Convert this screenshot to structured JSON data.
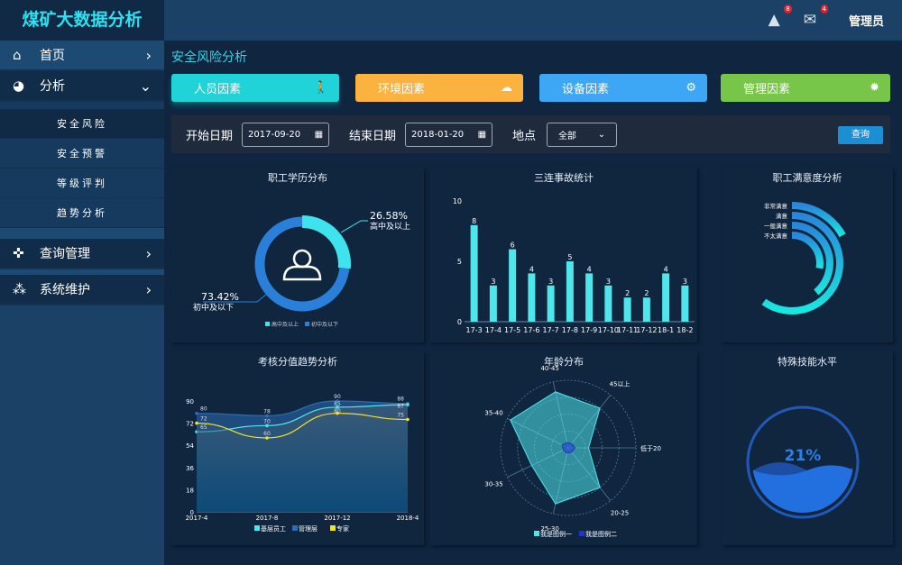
{
  "app_title": "煤矿大数据分析",
  "sidebar": {
    "items": [
      {
        "label": "首页",
        "icon": "home-icon"
      },
      {
        "label": "分析",
        "icon": "dashboard-icon",
        "expanded": true,
        "children": [
          "安全风险",
          "安全预警",
          "等级评判",
          "趋势分析"
        ]
      },
      {
        "label": "查询管理",
        "icon": "crosshair-icon"
      },
      {
        "label": "系统维护",
        "icon": "cubes-icon"
      }
    ]
  },
  "header": {
    "alerts_count": "8",
    "messages_count": "4",
    "user": "管理员"
  },
  "page_title": "安全风险分析",
  "cards": [
    {
      "label": "人员因素",
      "color": "#1fd3d8",
      "icon": "person-icon"
    },
    {
      "label": "环境因素",
      "color": "#fcb23e",
      "icon": "cloud-icon"
    },
    {
      "label": "设备因素",
      "color": "#3ea7f5",
      "icon": "steam-icon"
    },
    {
      "label": "管理因素",
      "color": "#77c64a",
      "icon": "gear-icon"
    }
  ],
  "filter": {
    "start_label": "开始日期",
    "start_value": "2017-09-20",
    "end_label": "结束日期",
    "end_value": "2018-01-20",
    "location_label": "地点",
    "location_value": "全部",
    "query_label": "查询"
  },
  "chart_data": [
    {
      "type": "pie",
      "title": "职工学历分布",
      "categories": [
        "高中及以上",
        "初中及以下"
      ],
      "values": [
        26.58,
        73.42
      ],
      "labels": [
        "26.58%",
        "73.42%"
      ],
      "colors": [
        "#3fe3ee",
        "#2a7fd8"
      ],
      "legend": "bottom"
    },
    {
      "type": "bar",
      "title": "三连事故统计",
      "categories": [
        "17-3",
        "17-4",
        "17-5",
        "17-6",
        "17-7",
        "17-8",
        "17-9",
        "17-10",
        "17-11",
        "17-12",
        "18-1",
        "18-2"
      ],
      "values": [
        8,
        3,
        6,
        4,
        3,
        5,
        4,
        3,
        2,
        2,
        4,
        3
      ],
      "ylim": [
        0,
        10
      ],
      "yticks": [
        0,
        5,
        10
      ],
      "color": "#4ee6ec"
    },
    {
      "type": "bar",
      "subtype": "radial",
      "title": "职工满意度分析",
      "categories": [
        "非常满意",
        "满意",
        "一般满意",
        "不太满意"
      ],
      "values": [
        17,
        60,
        39,
        28
      ],
      "note_units": "percent of full circle"
    },
    {
      "type": "area",
      "title": "考核分值趋势分析",
      "categories": [
        "2017-4",
        "2017-8",
        "2017-12",
        "2018-4"
      ],
      "ylim": [
        0,
        90
      ],
      "yticks": [
        0,
        18,
        36,
        54,
        72,
        90
      ],
      "legend": "bottom",
      "series": [
        {
          "name": "基层员工",
          "values": [
            65,
            70,
            85,
            87
          ],
          "color": "#4ee6ec"
        },
        {
          "name": "管理层",
          "values": [
            80,
            78,
            90,
            88
          ],
          "color": "#2b6fb8"
        },
        {
          "name": "专家",
          "values": [
            72,
            60,
            80,
            75
          ],
          "color": "#f2e22a"
        }
      ]
    },
    {
      "type": "radar",
      "title": "年龄分布",
      "categories": [
        "低于20",
        "45以上",
        "40-45",
        "35-40",
        "30-35",
        "25-30",
        "20-25"
      ],
      "max": 100,
      "legend": "bottom",
      "series": [
        {
          "name": "我是图例一",
          "values": [
            30,
            75,
            85,
            95,
            60,
            85,
            75
          ],
          "color": "#4ee6ec"
        },
        {
          "name": "我是图例二",
          "values": [
            10,
            8,
            8,
            10,
            8,
            8,
            8
          ],
          "color": "#2233cc"
        }
      ]
    },
    {
      "type": "gauge",
      "title": "特殊技能水平",
      "value": 21,
      "label": "21%"
    }
  ]
}
